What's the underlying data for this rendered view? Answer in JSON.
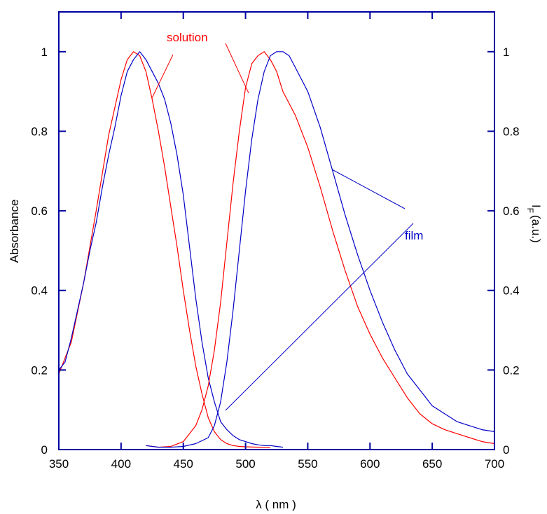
{
  "chart_data": {
    "type": "line",
    "xlabel": "λ ( nm )",
    "ylabel_left": "Absorbance",
    "ylabel_right": "I",
    "ylabel_right_sub": "F",
    "ylabel_right_unit": "(a.u.)",
    "xlim": [
      350,
      700
    ],
    "ylim": [
      0,
      1.1
    ],
    "x_ticks": [
      350,
      400,
      450,
      500,
      550,
      600,
      650,
      700
    ],
    "x_tick_labels": [
      "350",
      "400",
      "450",
      "500",
      "550",
      "600",
      "650",
      "700"
    ],
    "y_ticks": [
      0,
      0.2,
      0.4,
      0.6,
      0.8,
      1
    ],
    "y_tick_labels": [
      "0",
      "0.2",
      "0.4",
      "0.6",
      "0.8",
      "1"
    ],
    "grid": false,
    "axis_color": "#0000a0",
    "annotations": [
      {
        "text": "solution",
        "color": "#ff0000"
      },
      {
        "text": "film",
        "color": "#0000c8"
      }
    ],
    "series": [
      {
        "group": "absorbance-solution",
        "color": "#ff0000",
        "x": [
          350,
          360,
          370,
          380,
          390,
          400,
          405,
          410,
          415,
          420,
          425,
          430,
          435,
          440,
          445,
          450,
          455,
          460,
          465,
          470,
          475,
          480,
          485,
          490,
          495,
          500,
          510,
          520
        ],
        "y": [
          0.19,
          0.27,
          0.42,
          0.6,
          0.79,
          0.93,
          0.98,
          1.0,
          0.99,
          0.95,
          0.88,
          0.8,
          0.71,
          0.61,
          0.51,
          0.4,
          0.3,
          0.21,
          0.14,
          0.08,
          0.045,
          0.025,
          0.015,
          0.01,
          0.008,
          0.007,
          0.006,
          0.005
        ]
      },
      {
        "group": "absorbance-film",
        "color": "#0000c8",
        "x": [
          350,
          355,
          360,
          365,
          370,
          375,
          380,
          385,
          390,
          395,
          400,
          405,
          410,
          415,
          420,
          425,
          430,
          435,
          440,
          445,
          450,
          455,
          460,
          465,
          470,
          475,
          480,
          485,
          490,
          495,
          500,
          505,
          510,
          515,
          520,
          525,
          530
        ],
        "y": [
          0.2,
          0.22,
          0.28,
          0.35,
          0.42,
          0.5,
          0.57,
          0.66,
          0.74,
          0.81,
          0.89,
          0.95,
          0.98,
          1.0,
          0.98,
          0.95,
          0.92,
          0.88,
          0.82,
          0.74,
          0.64,
          0.51,
          0.38,
          0.27,
          0.18,
          0.12,
          0.07,
          0.05,
          0.035,
          0.025,
          0.02,
          0.015,
          0.012,
          0.01,
          0.01,
          0.008,
          0.006
        ]
      },
      {
        "group": "emission-solution",
        "color": "#ff0000",
        "x": [
          420,
          430,
          440,
          450,
          460,
          465,
          470,
          475,
          480,
          485,
          490,
          495,
          500,
          505,
          510,
          515,
          520,
          525,
          530,
          540,
          550,
          560,
          570,
          580,
          590,
          600,
          610,
          620,
          630,
          640,
          650,
          660,
          670,
          680,
          690,
          700
        ],
        "y": [
          0.01,
          0.006,
          0.008,
          0.02,
          0.06,
          0.1,
          0.16,
          0.25,
          0.37,
          0.52,
          0.67,
          0.8,
          0.91,
          0.97,
          0.99,
          1.0,
          0.98,
          0.95,
          0.9,
          0.84,
          0.76,
          0.66,
          0.55,
          0.45,
          0.36,
          0.29,
          0.23,
          0.18,
          0.13,
          0.09,
          0.065,
          0.05,
          0.04,
          0.03,
          0.02,
          0.015
        ]
      },
      {
        "group": "emission-film",
        "color": "#0000c8",
        "x": [
          420,
          430,
          440,
          450,
          460,
          470,
          475,
          480,
          485,
          490,
          495,
          500,
          505,
          510,
          515,
          520,
          525,
          530,
          535,
          540,
          550,
          560,
          570,
          580,
          590,
          600,
          610,
          620,
          630,
          640,
          650,
          660,
          670,
          680,
          690,
          700
        ],
        "y": [
          0.01,
          0.006,
          0.006,
          0.008,
          0.015,
          0.03,
          0.06,
          0.12,
          0.22,
          0.35,
          0.5,
          0.65,
          0.78,
          0.88,
          0.95,
          0.99,
          1.0,
          1.0,
          0.99,
          0.96,
          0.9,
          0.81,
          0.7,
          0.59,
          0.49,
          0.4,
          0.32,
          0.25,
          0.19,
          0.15,
          0.11,
          0.09,
          0.07,
          0.06,
          0.05,
          0.045
        ]
      }
    ]
  }
}
